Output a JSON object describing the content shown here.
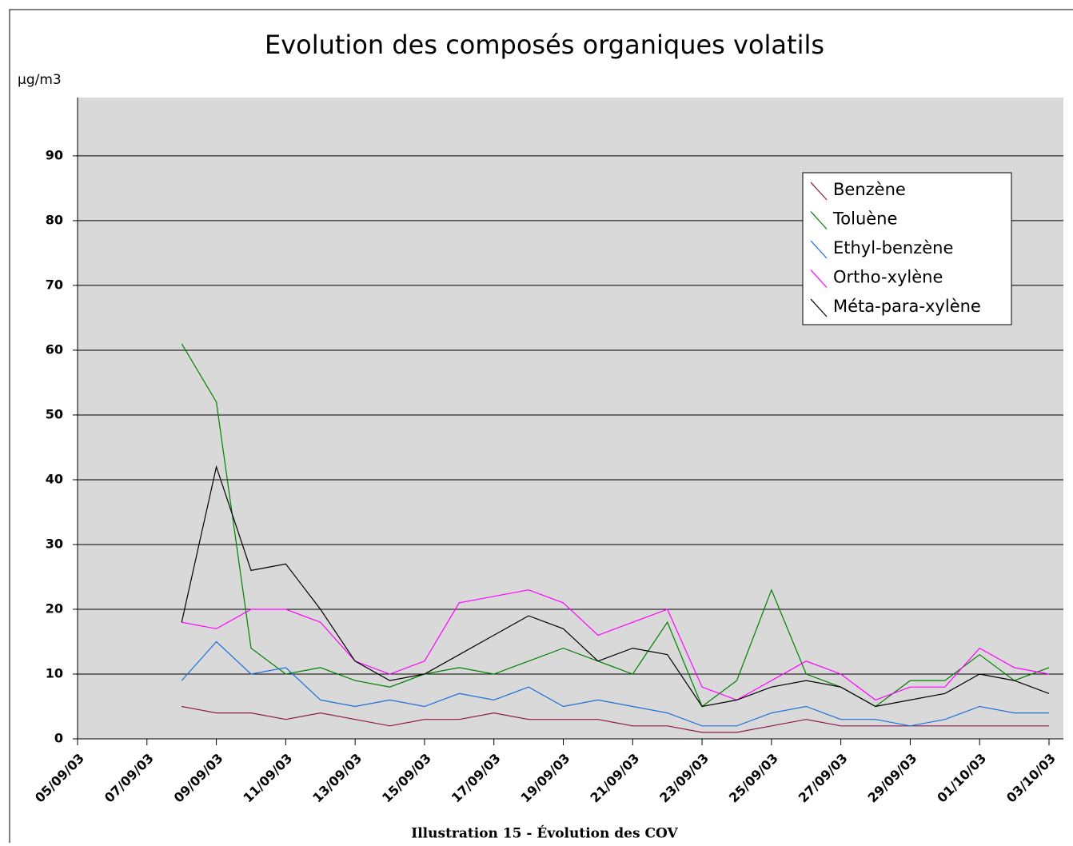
{
  "chart_data": {
    "type": "line",
    "title": "Evolution des composés organiques volatils",
    "y_label": "µg/m3",
    "caption": "Illustration 15 - Évolution des COV",
    "x": [
      "08/09/03",
      "09/09/03",
      "10/09/03",
      "11/09/03",
      "12/09/03",
      "13/09/03",
      "14/09/03",
      "15/09/03",
      "16/09/03",
      "17/09/03",
      "18/09/03",
      "19/09/03",
      "20/09/03",
      "21/09/03",
      "22/09/03",
      "23/09/03",
      "24/09/03",
      "25/09/03",
      "26/09/03",
      "27/09/03",
      "28/09/03",
      "29/09/03",
      "30/09/03",
      "01/10/03",
      "02/10/03",
      "03/10/03"
    ],
    "series": [
      {
        "name": "Benzène",
        "color": "#8b1a4a",
        "values": [
          5,
          4,
          4,
          3,
          4,
          3,
          2,
          3,
          3,
          4,
          3,
          3,
          3,
          2,
          2,
          1,
          1,
          2,
          3,
          2,
          2,
          2,
          2,
          2,
          2,
          2
        ]
      },
      {
        "name": "Toluène",
        "color": "#008000",
        "values": [
          61,
          52,
          14,
          10,
          11,
          9,
          8,
          10,
          11,
          10,
          12,
          14,
          12,
          10,
          18,
          5,
          9,
          23,
          10,
          8,
          5,
          9,
          9,
          13,
          9,
          11
        ]
      },
      {
        "name": "Ethyl-benzène",
        "color": "#1e6fd9",
        "values": [
          9,
          15,
          10,
          11,
          6,
          5,
          6,
          5,
          7,
          6,
          8,
          5,
          6,
          5,
          4,
          2,
          2,
          4,
          5,
          3,
          3,
          2,
          3,
          5,
          4,
          4
        ]
      },
      {
        "name": "Ortho-xylène",
        "color": "#ff00ff",
        "values": [
          18,
          17,
          20,
          20,
          18,
          12,
          10,
          12,
          21,
          22,
          23,
          21,
          16,
          18,
          20,
          8,
          6,
          9,
          12,
          10,
          6,
          8,
          8,
          14,
          11,
          10
        ]
      },
      {
        "name": "Méta-para-xylène",
        "color": "#000000",
        "values": [
          18,
          42,
          26,
          27,
          20,
          12,
          9,
          10,
          13,
          16,
          19,
          17,
          12,
          14,
          13,
          5,
          6,
          8,
          9,
          8,
          5,
          6,
          7,
          10,
          9,
          7
        ]
      }
    ],
    "xlim": [
      "05/09/03",
      "03/10/03"
    ],
    "xticks": [
      "05/09/03",
      "07/09/03",
      "09/09/03",
      "11/09/03",
      "13/09/03",
      "15/09/03",
      "17/09/03",
      "19/09/03",
      "21/09/03",
      "23/09/03",
      "25/09/03",
      "27/09/03",
      "29/09/03",
      "01/10/03",
      "03/10/03"
    ],
    "ylim": [
      0,
      99
    ],
    "yticks": [
      0,
      10,
      20,
      30,
      40,
      50,
      60,
      70,
      80,
      90
    ],
    "grid": true,
    "legend": "upper right"
  }
}
